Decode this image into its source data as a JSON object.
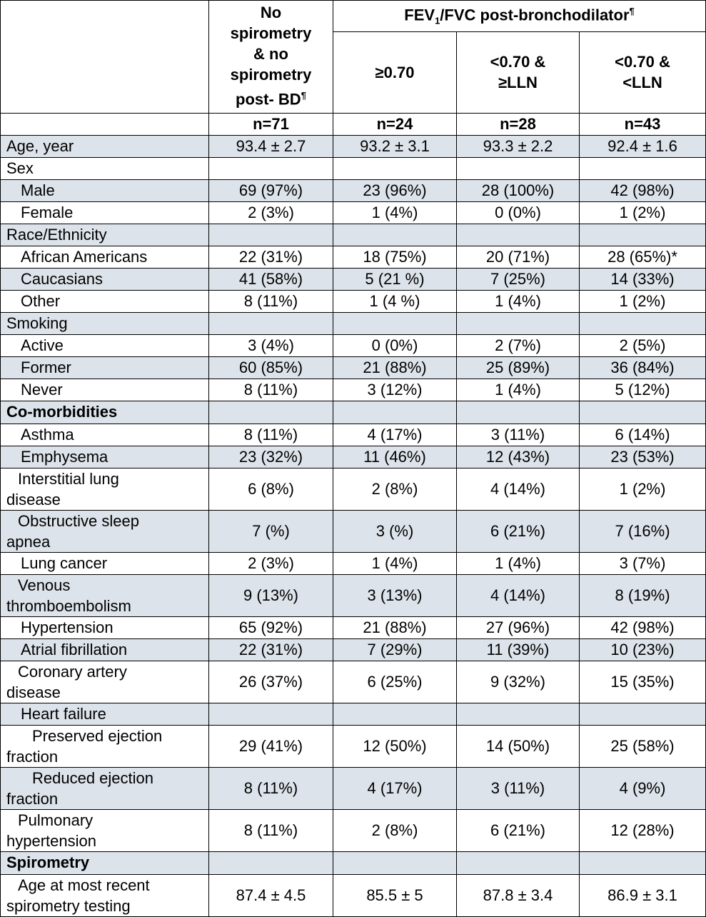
{
  "header": {
    "col1": [
      "No",
      "spirometry",
      "& no",
      "spirometry",
      "post- BD"
    ],
    "col1_sup": "¶",
    "group_prefix": "FEV",
    "group_sub": "1",
    "group_suffix": "/FVC post-bronchodilator",
    "group_sup": "¶",
    "col2": "≥0.70",
    "col3": [
      "<0.70 &",
      "≥LLN"
    ],
    "col4": [
      "<0.70 &",
      "<LLN"
    ],
    "n": [
      "n=71",
      "n=24",
      "n=28",
      "n=43"
    ]
  },
  "rows": [
    {
      "label": "Age, year",
      "vals": [
        "93.4 ± 2.7",
        "93.2 ± 3.1",
        "93.3 ± 2.2",
        "92.4 ± 1.6"
      ]
    },
    {
      "label": "Sex",
      "vals": [
        "",
        "",
        "",
        ""
      ]
    },
    {
      "label": "Male",
      "vals": [
        "69 (97%)",
        "23 (96%)",
        "28 (100%)",
        "42 (98%)"
      ]
    },
    {
      "label": "Female",
      "vals": [
        "2 (3%)",
        "1 (4%)",
        "0 (0%)",
        "1 (2%)"
      ]
    },
    {
      "label": "Race/Ethnicity",
      "vals": [
        "",
        "",
        "",
        ""
      ]
    },
    {
      "label": "African Americans",
      "vals": [
        "22 (31%)",
        "18 (75%)",
        "20 (71%)",
        "28 (65%)*"
      ]
    },
    {
      "label": "Caucasians",
      "vals": [
        "41 (58%)",
        "5 (21 %)",
        "7 (25%)",
        "14 (33%)"
      ]
    },
    {
      "label": "Other",
      "vals": [
        "8 (11%)",
        "1 (4 %)",
        "1 (4%)",
        "1 (2%)"
      ]
    },
    {
      "label": "Smoking",
      "vals": [
        "",
        "",
        "",
        ""
      ]
    },
    {
      "label": "Active",
      "vals": [
        "3 (4%)",
        "0 (0%)",
        "2 (7%)",
        "2 (5%)"
      ]
    },
    {
      "label": "Former",
      "vals": [
        "60 (85%)",
        "21 (88%)",
        "25 (89%)",
        "36 (84%)"
      ]
    },
    {
      "label": "Never",
      "vals": [
        "8 (11%)",
        "3 (12%)",
        "1 (4%)",
        "5 (12%)"
      ]
    },
    {
      "label": "Co-morbidities",
      "vals": [
        "",
        "",
        "",
        ""
      ]
    },
    {
      "label": "Asthma",
      "vals": [
        "8 (11%)",
        "4 (17%)",
        "3 (11%)",
        "6 (14%)"
      ]
    },
    {
      "label": "Emphysema",
      "vals": [
        "23 (32%)",
        "11 (46%)",
        "12 (43%)",
        "23 (53%)"
      ]
    },
    {
      "label": [
        "Interstitial lung",
        "disease"
      ],
      "vals": [
        "6 (8%)",
        "2 (8%)",
        "4 (14%)",
        "1 (2%)"
      ]
    },
    {
      "label": [
        "Obstructive sleep",
        "apnea"
      ],
      "vals": [
        "7 (%)",
        "3 (%)",
        "6 (21%)",
        "7 (16%)"
      ]
    },
    {
      "label": "Lung cancer",
      "vals": [
        "2 (3%)",
        "1 (4%)",
        "1 (4%)",
        "3 (7%)"
      ]
    },
    {
      "label": [
        "Venous",
        "thromboembolism"
      ],
      "vals": [
        "9 (13%)",
        "3 (13%)",
        "4 (14%)",
        "8 (19%)"
      ]
    },
    {
      "label": "Hypertension",
      "vals": [
        "65 (92%)",
        "21 (88%)",
        "27 (96%)",
        "42 (98%)"
      ]
    },
    {
      "label": "Atrial fibrillation",
      "vals": [
        "22 (31%)",
        "7 (29%)",
        "11 (39%)",
        "10 (23%)"
      ]
    },
    {
      "label": [
        "Coronary artery",
        "disease"
      ],
      "vals": [
        "26 (37%)",
        "6 (25%)",
        "9 (32%)",
        "15 (35%)"
      ]
    },
    {
      "label": "Heart failure",
      "vals": [
        "",
        "",
        "",
        ""
      ]
    },
    {
      "label": [
        "Preserved ejection",
        "fraction"
      ],
      "vals": [
        "29 (41%)",
        "12 (50%)",
        "14 (50%)",
        "25 (58%)"
      ]
    },
    {
      "label": [
        "Reduced ejection",
        "fraction"
      ],
      "vals": [
        "8 (11%)",
        "4 (17%)",
        "3 (11%)",
        "4 (9%)"
      ]
    },
    {
      "label": [
        "Pulmonary",
        "hypertension"
      ],
      "vals": [
        "8 (11%)",
        "2 (8%)",
        "6 (21%)",
        "12 (28%)"
      ]
    },
    {
      "label": "Spirometry",
      "vals": [
        "",
        "",
        "",
        ""
      ]
    },
    {
      "label": [
        "Age at most recent",
        "spirometry testing"
      ],
      "vals": [
        "87.4 ± 4.5",
        "85.5 ± 5",
        "87.8 ± 3.4",
        "86.9 ± 3.1"
      ]
    }
  ]
}
